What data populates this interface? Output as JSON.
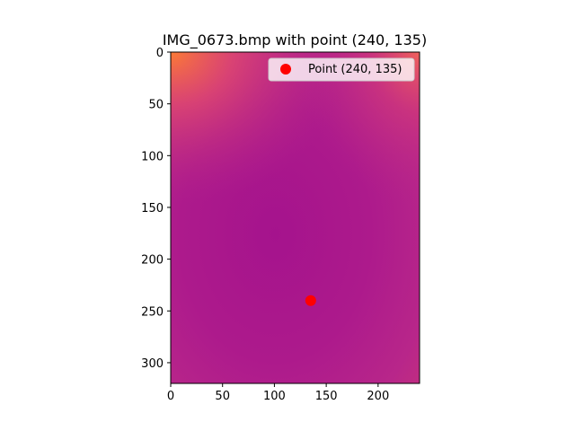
{
  "figure": {
    "title": "IMG_0673.bmp with point (240, 135)"
  },
  "chart_data": {
    "type": "scatter",
    "title": "IMG_0673.bmp with point (240, 135)",
    "background": "image heatmap (magma-like: orange corners fading to magenta center)",
    "xlim": [
      0,
      240
    ],
    "ylim": [
      320,
      0
    ],
    "y_inverted": true,
    "x_ticks": [
      0,
      50,
      100,
      150,
      200
    ],
    "y_ticks": [
      0,
      50,
      100,
      150,
      200,
      250,
      300
    ],
    "x_tick_labels": [
      "0",
      "50",
      "100",
      "150",
      "200"
    ],
    "y_tick_labels": [
      "0",
      "50",
      "100",
      "150",
      "200",
      "250",
      "300"
    ],
    "series": [
      {
        "name": "Point (240, 135)",
        "x": [
          135
        ],
        "y": [
          240
        ],
        "color": "#ff0000",
        "marker": "circle"
      }
    ],
    "legend": {
      "placement": "top-right",
      "label": "Point (240, 135)"
    },
    "colors": {
      "center": "#a8168c",
      "mid": "#b8228a",
      "edge_orange": "#f76b3a",
      "edge_pink": "#d63a72"
    }
  }
}
